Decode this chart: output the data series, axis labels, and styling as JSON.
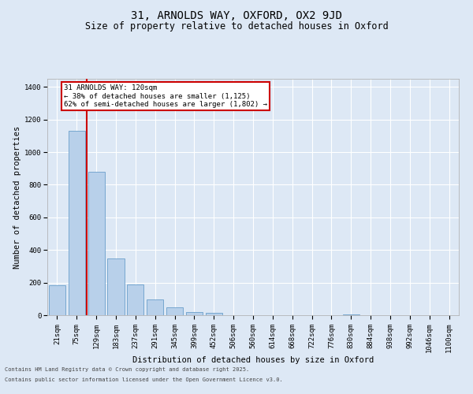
{
  "title_line1": "31, ARNOLDS WAY, OXFORD, OX2 9JD",
  "title_line2": "Size of property relative to detached houses in Oxford",
  "xlabel": "Distribution of detached houses by size in Oxford",
  "ylabel": "Number of detached properties",
  "categories": [
    "21sqm",
    "75sqm",
    "129sqm",
    "183sqm",
    "237sqm",
    "291sqm",
    "345sqm",
    "399sqm",
    "452sqm",
    "506sqm",
    "560sqm",
    "614sqm",
    "668sqm",
    "722sqm",
    "776sqm",
    "830sqm",
    "884sqm",
    "938sqm",
    "992sqm",
    "1046sqm",
    "1100sqm"
  ],
  "values": [
    185,
    1130,
    880,
    350,
    190,
    95,
    50,
    20,
    15,
    0,
    0,
    0,
    0,
    0,
    0,
    5,
    0,
    0,
    0,
    0,
    0
  ],
  "bar_color": "#b8d0ea",
  "bar_edgecolor": "#6a9fcb",
  "vline_color": "#cc0000",
  "annotation_text": "31 ARNOLDS WAY: 120sqm\n← 38% of detached houses are smaller (1,125)\n62% of semi-detached houses are larger (1,802) →",
  "annotation_box_color": "#cc0000",
  "ylim": [
    0,
    1450
  ],
  "yticks": [
    0,
    200,
    400,
    600,
    800,
    1000,
    1200,
    1400
  ],
  "bg_color": "#dde8f5",
  "plot_bg_color": "#dde8f5",
  "footer_line1": "Contains HM Land Registry data © Crown copyright and database right 2025.",
  "footer_line2": "Contains public sector information licensed under the Open Government Licence v3.0.",
  "grid_color": "#ffffff",
  "title_fontsize": 10,
  "subtitle_fontsize": 8.5,
  "label_fontsize": 7.5,
  "tick_fontsize": 6.5,
  "annot_fontsize": 6.5
}
